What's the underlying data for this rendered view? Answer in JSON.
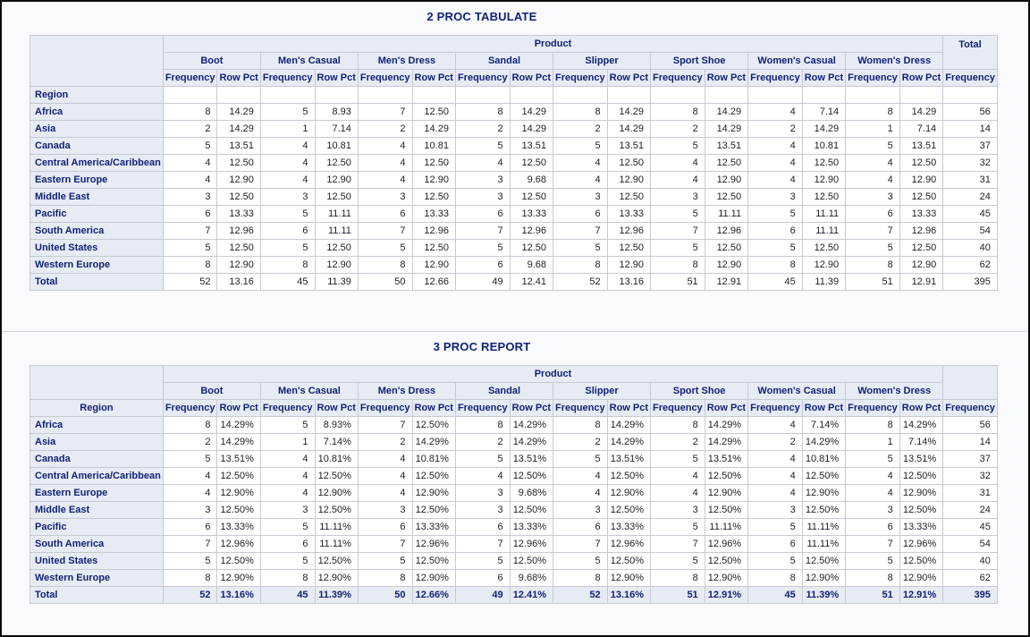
{
  "titles": {
    "tabulate": "2 PROC TABULATE",
    "report": "3 PROC REPORT"
  },
  "table_labels": {
    "product": "Product",
    "total": "Total",
    "region": "Region",
    "frequency": "Frequency",
    "row_pct": "Row Pct"
  },
  "products": [
    "Boot",
    "Men's Casual",
    "Men's Dress",
    "Sandal",
    "Slipper",
    "Sport Shoe",
    "Women's Casual",
    "Women's Dress"
  ],
  "rows": [
    {
      "region": "Africa",
      "freq": [
        8,
        5,
        7,
        8,
        8,
        8,
        4,
        8
      ],
      "pct": [
        "14.29",
        "8.93",
        "12.50",
        "14.29",
        "14.29",
        "14.29",
        "7.14",
        "14.29"
      ],
      "total": 56
    },
    {
      "region": "Asia",
      "freq": [
        2,
        1,
        2,
        2,
        2,
        2,
        2,
        1
      ],
      "pct": [
        "14.29",
        "7.14",
        "14.29",
        "14.29",
        "14.29",
        "14.29",
        "14.29",
        "7.14"
      ],
      "total": 14
    },
    {
      "region": "Canada",
      "freq": [
        5,
        4,
        4,
        5,
        5,
        5,
        4,
        5
      ],
      "pct": [
        "13.51",
        "10.81",
        "10.81",
        "13.51",
        "13.51",
        "13.51",
        "10.81",
        "13.51"
      ],
      "total": 37
    },
    {
      "region": "Central America/Caribbean",
      "freq": [
        4,
        4,
        4,
        4,
        4,
        4,
        4,
        4
      ],
      "pct": [
        "12.50",
        "12.50",
        "12.50",
        "12.50",
        "12.50",
        "12.50",
        "12.50",
        "12.50"
      ],
      "total": 32
    },
    {
      "region": "Eastern Europe",
      "freq": [
        4,
        4,
        4,
        3,
        4,
        4,
        4,
        4
      ],
      "pct": [
        "12.90",
        "12.90",
        "12.90",
        "9.68",
        "12.90",
        "12.90",
        "12.90",
        "12.90"
      ],
      "total": 31
    },
    {
      "region": "Middle East",
      "freq": [
        3,
        3,
        3,
        3,
        3,
        3,
        3,
        3
      ],
      "pct": [
        "12.50",
        "12.50",
        "12.50",
        "12.50",
        "12.50",
        "12.50",
        "12.50",
        "12.50"
      ],
      "total": 24
    },
    {
      "region": "Pacific",
      "freq": [
        6,
        5,
        6,
        6,
        6,
        5,
        5,
        6
      ],
      "pct": [
        "13.33",
        "11.11",
        "13.33",
        "13.33",
        "13.33",
        "11.11",
        "11.11",
        "13.33"
      ],
      "total": 45
    },
    {
      "region": "South America",
      "freq": [
        7,
        6,
        7,
        7,
        7,
        7,
        6,
        7
      ],
      "pct": [
        "12.96",
        "11.11",
        "12.96",
        "12.96",
        "12.96",
        "12.96",
        "11.11",
        "12.96"
      ],
      "total": 54
    },
    {
      "region": "United States",
      "freq": [
        5,
        5,
        5,
        5,
        5,
        5,
        5,
        5
      ],
      "pct": [
        "12.50",
        "12.50",
        "12.50",
        "12.50",
        "12.50",
        "12.50",
        "12.50",
        "12.50"
      ],
      "total": 40
    },
    {
      "region": "Western Europe",
      "freq": [
        8,
        8,
        8,
        6,
        8,
        8,
        8,
        8
      ],
      "pct": [
        "12.90",
        "12.90",
        "12.90",
        "9.68",
        "12.90",
        "12.90",
        "12.90",
        "12.90"
      ],
      "total": 62
    }
  ],
  "total_row": {
    "region": "Total",
    "freq": [
      52,
      45,
      50,
      49,
      52,
      51,
      45,
      51
    ],
    "pct": [
      "13.16",
      "11.39",
      "12.66",
      "12.41",
      "13.16",
      "12.91",
      "11.39",
      "12.91"
    ],
    "total": 395
  },
  "tables": [
    {
      "key": "tabulate",
      "pct_suffix": "",
      "show_total_header": true,
      "region_as_row": true,
      "shade_total_row": false
    },
    {
      "key": "report",
      "pct_suffix": "%",
      "show_total_header": false,
      "region_as_row": false,
      "shade_total_row": true
    }
  ],
  "colors": {
    "header_bg": "#e7ebf4",
    "header_text": "#112277",
    "border": "#c6cbd3",
    "page_bg": "#f8fafd",
    "data_text": "#1d1f24"
  }
}
